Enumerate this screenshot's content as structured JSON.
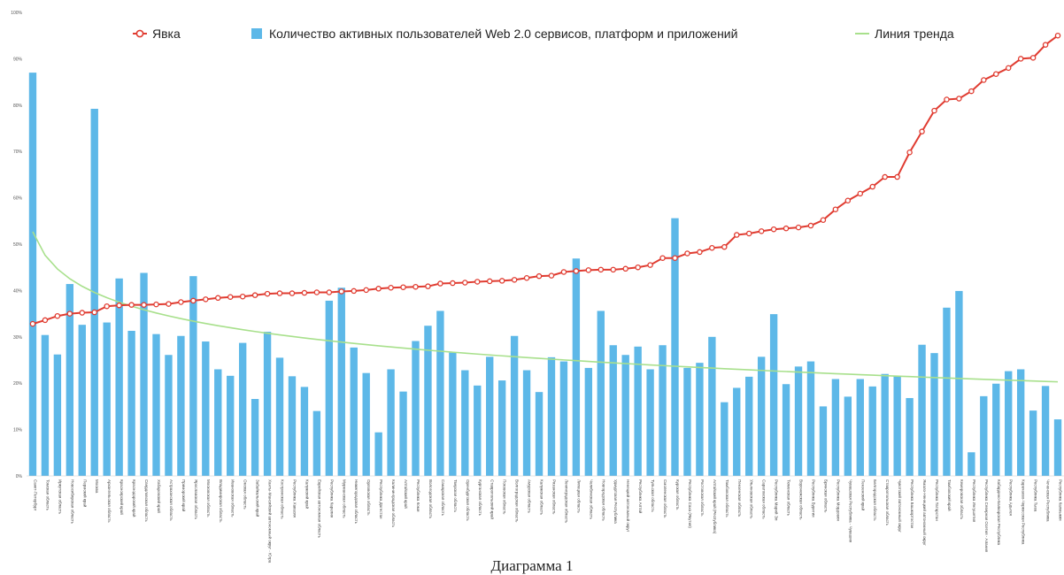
{
  "chart_data": {
    "type": "bar",
    "ylim": [
      0,
      100
    ],
    "yticks": [
      "0%",
      "10%",
      "20%",
      "30%",
      "40%",
      "50%",
      "60%",
      "70%",
      "80%",
      "90%",
      "100%"
    ],
    "grid": false,
    "legend_position": "top",
    "categories": [
      "Санкт-Петербург",
      "Томская область",
      "Иркутская область",
      "Новосибирская область",
      "Пермский край",
      "Москва",
      "Архангельская область",
      "Красноярский край",
      "Краснодарский край",
      "Свердловская область",
      "Хабаровский край",
      "Астраханская область",
      "Приморский край",
      "Ярославская область",
      "Московская область",
      "Владимирская область",
      "Ивановская область",
      "Омская область",
      "Забайкальский край",
      "Ханты-Мансийский автономный округ - Югра",
      "Костромская область",
      "Республика Хакасия",
      "Калужский край",
      "Еврейская автономная область",
      "Республика Карелия",
      "Мурманская область",
      "Нижегородская область",
      "Орловская область",
      "Республика Дагестан",
      "Калининградская область",
      "Алтайский край",
      "Республика Коми",
      "Вологодская область",
      "Самарская область",
      "Тверская область",
      "Оренбургская область",
      "Курганская область",
      "Ставропольский край",
      "Псковская область",
      "Волгоградская область",
      "Амурская область",
      "Калужская область",
      "Рязанская область",
      "Ленинградская область",
      "Липецкая область",
      "Челябинская область",
      "Новгородская область",
      "Удмуртская Республика",
      "Ненецкий автономный округ",
      "Республика Алтай",
      "Тульская область",
      "Смоленская область",
      "Курская область",
      "Республика Саха (Якутия)",
      "Ростовская область",
      "Алтайский край (Республика)",
      "Тамбовская область",
      "Пензенская область",
      "Ульяновская область",
      "Саратовская область",
      "Республика Марий Эл",
      "Тюменская область",
      "Воронежская область",
      "Республика Бурятия",
      "Брянская область",
      "Республика Мордовия",
      "Чувашская Республика - Чувашия",
      "Пензенский край",
      "Белгородская область",
      "Ставропольская область",
      "Чукотский автономный округ",
      "Республика Башкортостан",
      "Ямало-Ненецкий автономный округ",
      "Республика Татарстан",
      "Тамбовский край",
      "Кемеровская область",
      "Республика Ингушетия",
      "Республика Северная Осетия - Алания",
      "Кабардино-Балкарская Республика",
      "Республика Адыгея",
      "Карачаево-Черкесская Республика",
      "Республика Тыва",
      "Чеченская Республика",
      "Республика Калмыкия"
    ],
    "series": [
      {
        "name": "Явка",
        "type": "line",
        "color": "#e03c31",
        "values": [
          32.8,
          33.6,
          34.5,
          35.0,
          35.2,
          35.3,
          36.6,
          36.8,
          36.9,
          36.9,
          37.0,
          37.1,
          37.5,
          37.8,
          38.1,
          38.4,
          38.6,
          38.7,
          39.0,
          39.3,
          39.4,
          39.4,
          39.5,
          39.6,
          39.6,
          39.8,
          39.9,
          40.1,
          40.4,
          40.6,
          40.7,
          40.8,
          40.9,
          41.5,
          41.6,
          41.7,
          41.9,
          42.0,
          42.1,
          42.3,
          42.7,
          43.1,
          43.2,
          44.0,
          44.2,
          44.4,
          44.5,
          44.5,
          44.7,
          45.0,
          45.5,
          47.0,
          47.0,
          48.0,
          48.3,
          49.2,
          49.4,
          52.0,
          52.3,
          52.8,
          53.2,
          53.4,
          53.6,
          54.0,
          55.2,
          57.5,
          59.4,
          60.9,
          62.4,
          64.5,
          64.5,
          69.8,
          74.3,
          78.8,
          81.2,
          81.4,
          83.0,
          85.4,
          86.7,
          88.0,
          90.0,
          90.2,
          93.0,
          95.0
        ]
      },
      {
        "name": "Количество активных пользователей Web 2.0 сервисов, платформ и приложений",
        "type": "bar",
        "color": "#5db8e8",
        "values": [
          87.0,
          30.4,
          26.2,
          41.4,
          32.6,
          79.2,
          33.1,
          42.6,
          31.3,
          43.8,
          30.6,
          26.1,
          30.2,
          43.1,
          29.0,
          23.0,
          21.6,
          28.7,
          16.6,
          31.1,
          25.5,
          21.5,
          19.2,
          14.0,
          37.8,
          40.6,
          27.7,
          22.2,
          9.4,
          23.0,
          18.2,
          29.1,
          32.4,
          35.6,
          26.6,
          22.8,
          19.5,
          25.7,
          20.6,
          30.2,
          22.8,
          18.1,
          25.6,
          24.7,
          46.9,
          23.3,
          35.6,
          28.2,
          26.1,
          27.9,
          23.0,
          28.2,
          55.6,
          23.3,
          24.4,
          30.0,
          15.9,
          19.0,
          21.4,
          25.7,
          34.9,
          19.8,
          23.6,
          24.7,
          15.0,
          20.9,
          17.1,
          20.9,
          19.3,
          22.0,
          21.6,
          16.8,
          28.3,
          26.5,
          36.3,
          39.9,
          5.1,
          17.2,
          19.9,
          22.6,
          23.0,
          14.1,
          19.4,
          12.2
        ]
      },
      {
        "name": "Линия тренда",
        "type": "trend",
        "color": "#a8e08c"
      }
    ]
  },
  "caption": "Диаграмма 1"
}
